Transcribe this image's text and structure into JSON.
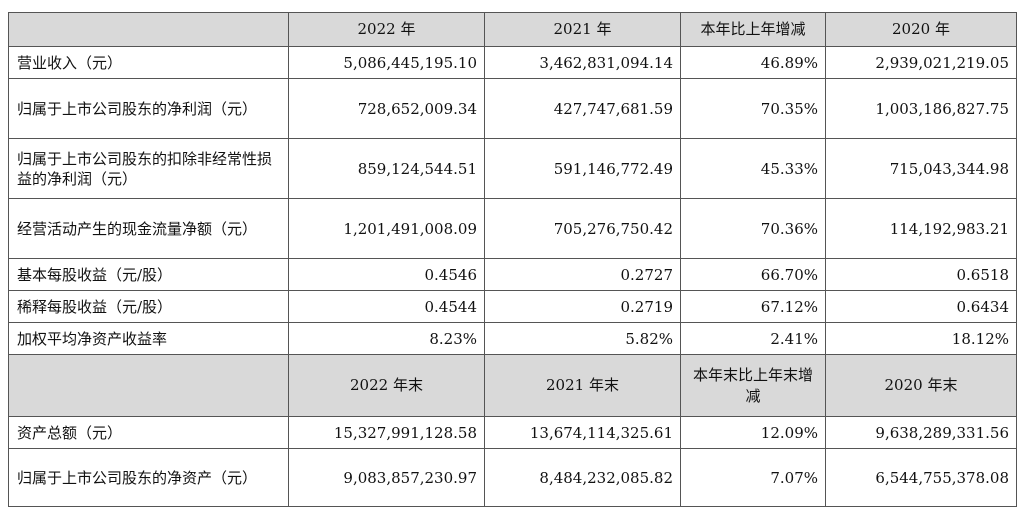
{
  "header1": {
    "corner": "",
    "cols": [
      "2022 年",
      "2021 年",
      "本年比上年增减",
      "2020 年"
    ]
  },
  "rows1": [
    {
      "label": "营业收入（元）",
      "v": [
        "5,086,445,195.10",
        "3,462,831,094.14",
        "46.89%",
        "2,939,021,219.05"
      ]
    },
    {
      "label": "归属于上市公司股东的净利润（元）",
      "v": [
        "728,652,009.34",
        "427,747,681.59",
        "70.35%",
        "1,003,186,827.75"
      ]
    },
    {
      "label": "归属于上市公司股东的扣除非经常性损益的净利润（元）",
      "v": [
        "859,124,544.51",
        "591,146,772.49",
        "45.33%",
        "715,043,344.98"
      ]
    },
    {
      "label": "经营活动产生的现金流量净额（元）",
      "v": [
        "1,201,491,008.09",
        "705,276,750.42",
        "70.36%",
        "114,192,983.21"
      ]
    },
    {
      "label": "基本每股收益（元/股）",
      "v": [
        "0.4546",
        "0.2727",
        "66.70%",
        "0.6518"
      ]
    },
    {
      "label": "稀释每股收益（元/股）",
      "v": [
        "0.4544",
        "0.2719",
        "67.12%",
        "0.6434"
      ]
    },
    {
      "label": "加权平均净资产收益率",
      "v": [
        "8.23%",
        "5.82%",
        "2.41%",
        "18.12%"
      ]
    }
  ],
  "header2": {
    "corner": "",
    "cols": [
      "2022 年末",
      "2021 年末",
      "本年末比上年末增减",
      "2020 年末"
    ]
  },
  "rows2": [
    {
      "label": "资产总额（元）",
      "v": [
        "15,327,991,128.58",
        "13,674,114,325.61",
        "12.09%",
        "9,638,289,331.56"
      ]
    },
    {
      "label": "归属于上市公司股东的净资产（元）",
      "v": [
        "9,083,857,230.97",
        "8,484,232,085.82",
        "7.07%",
        "6,544,755,378.08"
      ]
    }
  ]
}
